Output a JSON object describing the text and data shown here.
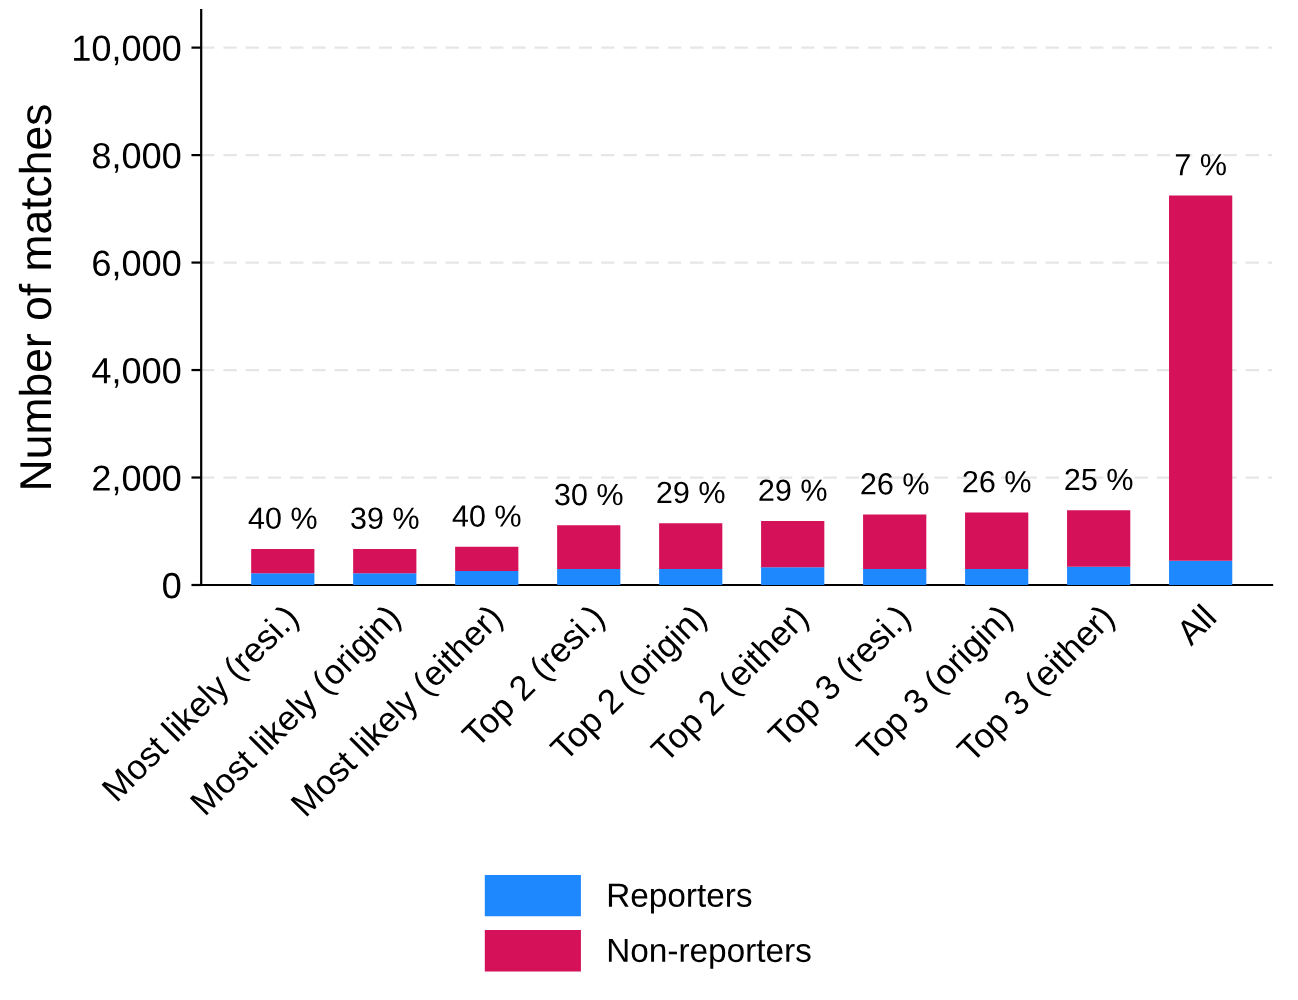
{
  "chart_data": {
    "type": "bar",
    "stacked": true,
    "ylabel": "Number of matches",
    "categories": [
      "Most likely (resi.)",
      "Most likely (origin)",
      "Most likely (either)",
      "Top 2 (resi.)",
      "Top 2 (origin)",
      "Top 2 (either)",
      "Top 3 (resi.)",
      "Top 3 (origin)",
      "Top 3 (either)",
      "All"
    ],
    "series": [
      {
        "name": "Reporters",
        "color": "#1e88ff",
        "values": [
          220,
          220,
          260,
          300,
          300,
          330,
          300,
          300,
          340,
          450
        ]
      },
      {
        "name": "Non-reporters",
        "color": "#d41159",
        "values": [
          450,
          450,
          450,
          810,
          850,
          860,
          1010,
          1050,
          1050,
          6800
        ]
      }
    ],
    "annotations": [
      {
        "text": "40 %",
        "x": "Most likely (resi.)",
        "y": 670
      },
      {
        "text": "39 %",
        "x": "Most likely (origin)",
        "y": 670
      },
      {
        "text": "40 %",
        "x": "Most likely (either)",
        "y": 710
      },
      {
        "text": "30 %",
        "x": "Top 2 (resi.)",
        "y": 1110
      },
      {
        "text": "29 %",
        "x": "Top 2 (origin)",
        "y": 1150
      },
      {
        "text": "29 %",
        "x": "Top 2 (either)",
        "y": 1190
      },
      {
        "text": "26 %",
        "x": "Top 3 (resi.)",
        "y": 1310
      },
      {
        "text": "26 %",
        "x": "Top 3 (origin)",
        "y": 1350
      },
      {
        "text": "25 %",
        "x": "Top 3 (either)",
        "y": 1390
      },
      {
        "text": "7 %",
        "x": "All",
        "y": 7250
      }
    ],
    "ylim": [
      0,
      10700
    ],
    "yticks": [
      {
        "value": 0,
        "label": "0"
      },
      {
        "value": 2000,
        "label": "2,000"
      },
      {
        "value": 4000,
        "label": "4,000"
      },
      {
        "value": 6000,
        "label": "6,000"
      },
      {
        "value": 8000,
        "label": "8,000"
      },
      {
        "value": 10000,
        "label": "10,000"
      }
    ],
    "grid": "y",
    "legend": "bottom"
  }
}
